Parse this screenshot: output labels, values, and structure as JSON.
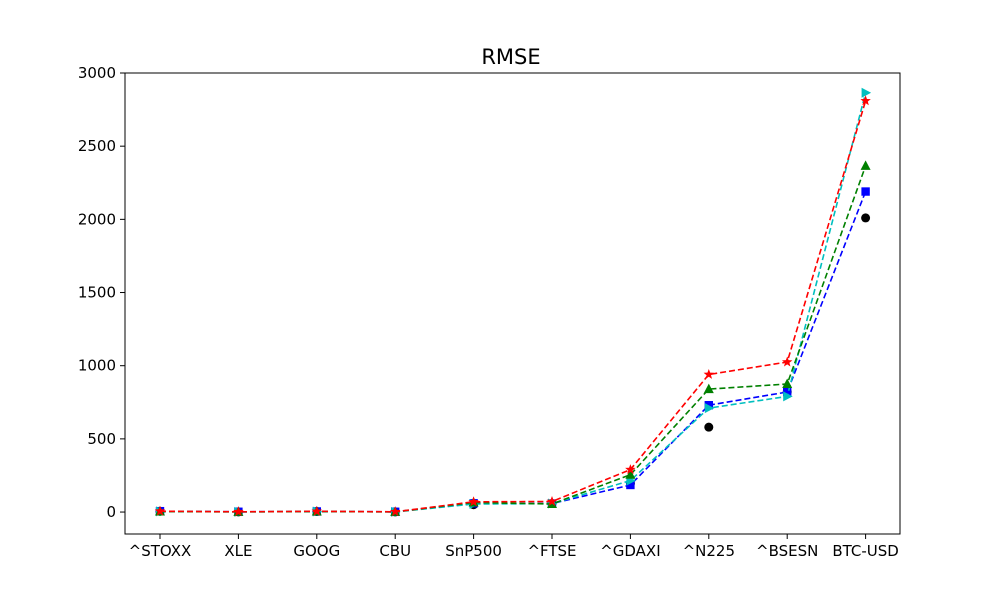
{
  "chart_data": {
    "type": "line",
    "title": "RMSE",
    "xlabel": "",
    "ylabel": "",
    "categories": [
      "^STOXX",
      "XLE",
      "GOOG",
      "CBU",
      "SnP500",
      "^FTSE",
      "^GDAXI",
      "^N225",
      "^BSESN",
      "BTC-USD"
    ],
    "ylim": [
      -150,
      3000
    ],
    "yticks": [
      0,
      500,
      1000,
      1500,
      2000,
      2500,
      3000
    ],
    "grid": false,
    "series": [
      {
        "color": "#000000",
        "marker": "circle",
        "linestyle": "none",
        "values": [
          5,
          1,
          4,
          1,
          50,
          58,
          195,
          580,
          820,
          2010
        ]
      },
      {
        "color": "#0000ff",
        "marker": "square",
        "linestyle": "dashed",
        "values": [
          6,
          2,
          4,
          2,
          60,
          58,
          185,
          730,
          820,
          2190
        ]
      },
      {
        "color": "#00bfbf",
        "marker": "triangle-right",
        "linestyle": "dashed",
        "values": [
          5,
          1,
          4,
          1,
          55,
          58,
          215,
          710,
          790,
          2865
        ]
      },
      {
        "color": "#008000",
        "marker": "triangle-up",
        "linestyle": "dashed",
        "values": [
          4,
          1,
          4,
          1,
          65,
          55,
          255,
          840,
          875,
          2365
        ]
      },
      {
        "color": "#ff0000",
        "marker": "star",
        "linestyle": "dashed",
        "values": [
          6,
          2,
          5,
          2,
          70,
          72,
          290,
          940,
          1025,
          2810
        ]
      }
    ]
  }
}
